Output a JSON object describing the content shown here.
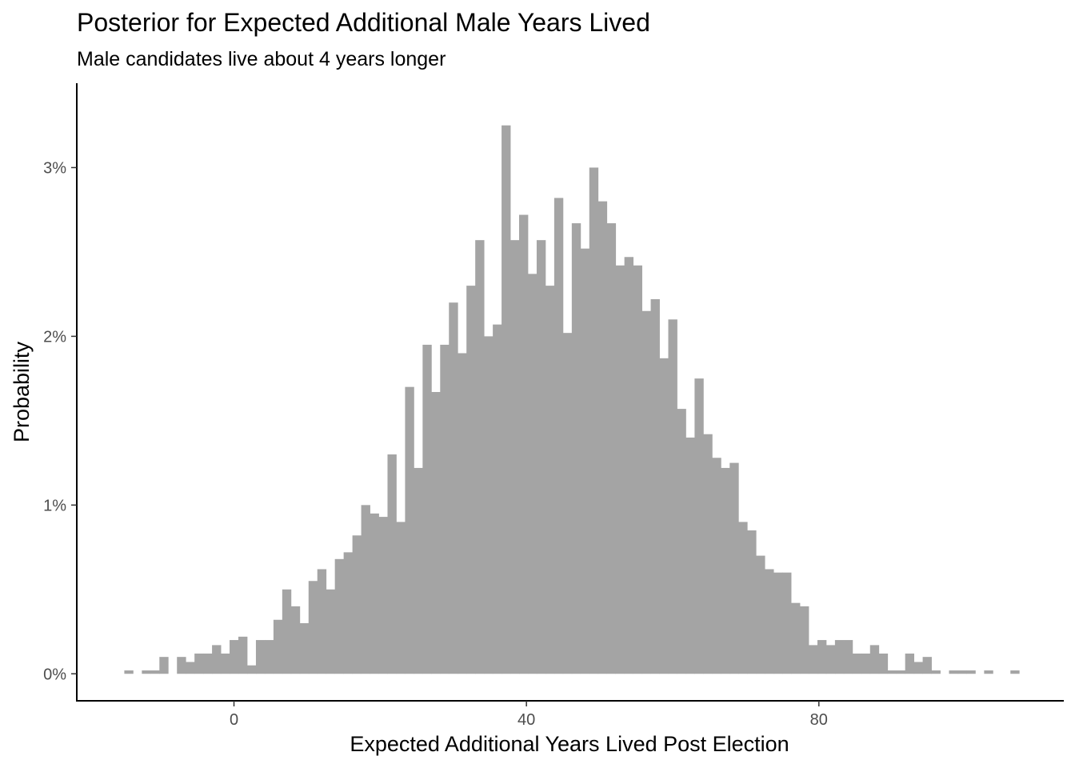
{
  "chart_data": {
    "type": "bar",
    "title": "Posterior for Expected Additional Male Years Lived",
    "subtitle": "Male candidates live about 4 years longer",
    "xlabel": "Expected Additional Years Lived Post Election",
    "ylabel": "Probability",
    "xlim": [
      -21.5,
      113.5
    ],
    "ylim": [
      -0.16,
      3.5
    ],
    "x_ticks": [
      0,
      40,
      80
    ],
    "x_tick_labels": [
      "0",
      "40",
      "80"
    ],
    "y_ticks": [
      0,
      1,
      2,
      3
    ],
    "y_tick_labels": [
      "0%",
      "1%",
      "2%",
      "3%"
    ],
    "bin_width": 1.2,
    "bin_start": -15.0,
    "bar_color": "#a4a4a4",
    "grid": false,
    "values": [
      0.02,
      0,
      0.02,
      0.02,
      0.1,
      0,
      0.1,
      0.07,
      0.12,
      0.12,
      0.17,
      0.12,
      0.2,
      0.22,
      0.05,
      0.2,
      0.2,
      0.32,
      0.5,
      0.4,
      0.3,
      0.55,
      0.62,
      0.5,
      0.68,
      0.72,
      0.82,
      1.0,
      0.95,
      0.93,
      1.3,
      0.9,
      1.7,
      1.22,
      1.95,
      1.67,
      1.95,
      2.2,
      1.9,
      2.3,
      2.57,
      2.0,
      2.07,
      3.25,
      2.57,
      2.72,
      2.37,
      2.57,
      2.3,
      2.82,
      2.02,
      2.67,
      2.52,
      3.0,
      2.8,
      2.67,
      2.42,
      2.47,
      2.42,
      2.15,
      2.22,
      1.87,
      2.1,
      1.57,
      1.4,
      1.75,
      1.42,
      1.28,
      1.22,
      1.25,
      0.9,
      0.85,
      0.7,
      0.62,
      0.6,
      0.6,
      0.42,
      0.4,
      0.17,
      0.2,
      0.17,
      0.2,
      0.2,
      0.12,
      0.12,
      0.17,
      0.12,
      0.02,
      0.02,
      0.12,
      0.07,
      0.1,
      0.02,
      0,
      0.02,
      0.02,
      0.02,
      0,
      0.02,
      0,
      0,
      0.02
    ]
  }
}
